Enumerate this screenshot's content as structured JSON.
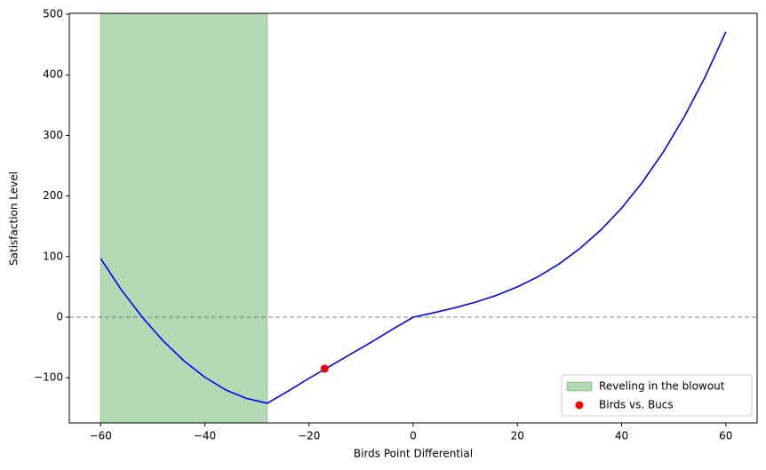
{
  "chart_data": {
    "type": "line",
    "xlabel": "Birds Point Differential",
    "ylabel": "Satisfaction Level",
    "x": [
      -60,
      -56,
      -52,
      -48,
      -44,
      -40,
      -36,
      -32,
      -28,
      -24,
      -20,
      -16,
      -12,
      -8,
      -4,
      0,
      4,
      8,
      12,
      16,
      20,
      24,
      28,
      32,
      36,
      40,
      44,
      48,
      52,
      56,
      60
    ],
    "series": [
      {
        "color": "#0000ff",
        "values": [
          97,
          45,
          0,
          -39,
          -72,
          -99,
          -120,
          -134,
          -142,
          -122,
          -101,
          -81,
          -61,
          -41,
          -20,
          0,
          7.4,
          15.5,
          24.9,
          36.1,
          50,
          67,
          87.9,
          113.4,
          143.9,
          180,
          222.9,
          272.7,
          330.3,
          396.1,
          471
        ]
      }
    ],
    "span": {
      "name": "Reveling in the blowout",
      "xrange": [
        -60,
        -28
      ],
      "color": "#008000",
      "alpha": 0.3
    },
    "points": [
      {
        "name": "Birds vs. Bucs",
        "x": -17,
        "y": -85,
        "color": "#ff0000"
      }
    ],
    "hline": {
      "y": 0,
      "color": "#808080",
      "style": "dashed"
    },
    "xlim": [
      -66,
      66
    ],
    "ylim": [
      -174.5,
      501.5
    ],
    "xticks": [
      {
        "value": -60,
        "label": "−60"
      },
      {
        "value": -40,
        "label": "−40"
      },
      {
        "value": -20,
        "label": "−20"
      },
      0,
      20,
      40,
      60
    ],
    "yticks": [
      {
        "value": -100,
        "label": "−100"
      },
      0,
      100,
      200,
      300,
      400,
      500
    ],
    "legend": "lower right"
  }
}
